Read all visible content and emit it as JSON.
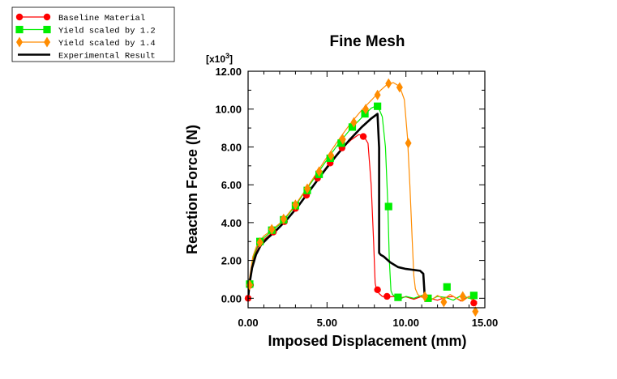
{
  "chart_data": {
    "type": "line",
    "title": "Fine Mesh",
    "xlabel": "Imposed Displacement (mm)",
    "ylabel": "Reaction Force (N)",
    "y_multiplier": "[x10",
    "y_multiplier_exp": "3",
    "y_multiplier_close": "]",
    "xlim": [
      0,
      15
    ],
    "ylim": [
      -0.5,
      12
    ],
    "x_ticks": [
      0,
      5,
      10,
      15
    ],
    "x_tick_labels": [
      "0.00",
      "5.00",
      "10.00",
      "15.00"
    ],
    "y_ticks": [
      0,
      2,
      4,
      6,
      8,
      10,
      12
    ],
    "y_tick_labels": [
      "0.00",
      "2.00",
      "4.00",
      "6.00",
      "8.00",
      "10.00",
      "12.00"
    ],
    "grid": false,
    "legend_position": "top-left outside",
    "series": [
      {
        "name": "Baseline Material",
        "color": "#ff0000",
        "marker": "circle",
        "x": [
          0,
          0.1,
          0.3,
          0.6,
          1.0,
          1.5,
          2.2,
          3.0,
          3.7,
          4.4,
          5.1,
          5.8,
          6.5,
          7.0,
          7.3,
          7.6,
          7.8,
          7.95,
          8.05,
          8.15,
          8.3,
          8.5,
          8.8,
          9.2,
          9.6,
          10.0,
          10.5,
          11.0,
          11.5,
          12.0,
          12.5,
          13.0,
          13.5,
          14.0,
          14.5
        ],
        "y": [
          0,
          0.9,
          2.0,
          2.7,
          3.1,
          3.45,
          3.9,
          4.7,
          5.5,
          6.3,
          7.1,
          7.8,
          8.35,
          8.65,
          8.6,
          8.2,
          6.0,
          3.0,
          0.8,
          0.4,
          0.25,
          0.1,
          0.05,
          0.1,
          0.02,
          0.08,
          -0.05,
          0.1,
          0.0,
          -0.1,
          0.05,
          0.1,
          -0.15,
          0.1,
          -0.2
        ],
        "marker_x": [
          0,
          0.15,
          0.75,
          1.6,
          2.3,
          3.0,
          3.7,
          4.4,
          5.2,
          5.95,
          7.3,
          8.2,
          8.8,
          14.3
        ],
        "marker_y": [
          0,
          0.7,
          3.0,
          3.5,
          4.05,
          4.75,
          5.45,
          6.35,
          7.15,
          7.95,
          8.55,
          0.45,
          0.1,
          -0.25
        ]
      },
      {
        "name": "Yield scaled by 1.2",
        "color": "#00ee00",
        "marker": "square",
        "x": [
          0,
          0.1,
          0.3,
          0.6,
          1.0,
          1.5,
          2.2,
          3.0,
          3.7,
          4.4,
          5.1,
          5.8,
          6.5,
          7.2,
          7.8,
          8.2,
          8.5,
          8.7,
          8.85,
          8.95,
          9.05,
          9.15,
          9.3,
          9.6,
          10.0,
          10.5,
          11.0,
          11.5,
          12.0,
          12.5,
          13.0,
          13.5,
          14.0,
          14.5
        ],
        "y": [
          0,
          1.0,
          2.1,
          2.8,
          3.2,
          3.55,
          4.05,
          4.9,
          5.75,
          6.6,
          7.45,
          8.25,
          8.95,
          9.55,
          10.05,
          10.2,
          9.6,
          8.0,
          5.0,
          2.0,
          0.4,
          0.2,
          0.1,
          -0.05,
          0.1,
          0.0,
          0.15,
          -0.1,
          0.1,
          0.05,
          -0.1,
          0.15,
          0.0,
          0.1
        ],
        "marker_x": [
          0.1,
          0.75,
          1.5,
          2.25,
          3.0,
          3.75,
          4.5,
          5.2,
          5.9,
          6.6,
          7.4,
          8.2,
          8.9,
          9.5,
          11.4,
          12.6,
          14.3
        ],
        "marker_y": [
          0.75,
          3.0,
          3.6,
          4.15,
          4.9,
          5.7,
          6.55,
          7.4,
          8.2,
          9.05,
          9.75,
          10.15,
          4.85,
          0.05,
          0.0,
          0.6,
          0.15
        ]
      },
      {
        "name": "Yield scaled by 1.4",
        "color": "#ff8c00",
        "marker": "diamond",
        "x": [
          0,
          0.1,
          0.3,
          0.6,
          1.0,
          1.5,
          2.2,
          3.0,
          3.7,
          4.4,
          5.1,
          5.8,
          6.5,
          7.2,
          7.9,
          8.4,
          8.8,
          9.2,
          9.6,
          9.9,
          10.1,
          10.25,
          10.4,
          10.5,
          10.6,
          10.75,
          11.0,
          11.3,
          11.6,
          12.0,
          12.4,
          12.8,
          13.2,
          13.6,
          14.0,
          14.4
        ],
        "y": [
          0,
          1.1,
          2.2,
          2.9,
          3.3,
          3.6,
          4.1,
          4.95,
          5.8,
          6.7,
          7.6,
          8.45,
          9.25,
          9.95,
          10.55,
          11.0,
          11.3,
          11.4,
          11.2,
          10.5,
          8.5,
          6.0,
          3.0,
          1.2,
          0.5,
          0.2,
          0.05,
          0.2,
          -0.1,
          0.15,
          -0.05,
          0.2,
          0.0,
          -0.15,
          0.1,
          -0.3
        ],
        "marker_x": [
          0.1,
          0.75,
          1.5,
          2.25,
          3.0,
          3.75,
          4.5,
          5.25,
          6.0,
          6.7,
          7.45,
          8.2,
          8.9,
          9.6,
          10.15,
          11.2,
          12.4,
          13.6,
          14.4
        ],
        "marker_y": [
          0.7,
          2.95,
          3.65,
          4.2,
          4.95,
          5.8,
          6.7,
          7.55,
          8.4,
          9.3,
          10.0,
          10.75,
          11.35,
          11.15,
          8.2,
          0.1,
          -0.2,
          0.1,
          -0.7
        ]
      },
      {
        "name": "Experimental Result",
        "color": "#000000",
        "marker": "none",
        "x": [
          0,
          0.1,
          0.25,
          0.5,
          0.8,
          1.2,
          1.8,
          2.5,
          3.2,
          4.0,
          4.8,
          5.6,
          6.4,
          7.2,
          7.8,
          8.2,
          8.3,
          8.3,
          8.4,
          8.6,
          9.0,
          9.5,
          10.0,
          10.5,
          10.9,
          11.1,
          11.2
        ],
        "y": [
          0,
          0.8,
          1.6,
          2.3,
          2.8,
          3.15,
          3.6,
          4.2,
          4.9,
          5.8,
          6.7,
          7.55,
          8.35,
          9.05,
          9.5,
          9.75,
          7.95,
          2.4,
          2.3,
          2.2,
          1.9,
          1.65,
          1.55,
          1.5,
          1.45,
          1.3,
          0.0
        ]
      }
    ]
  }
}
